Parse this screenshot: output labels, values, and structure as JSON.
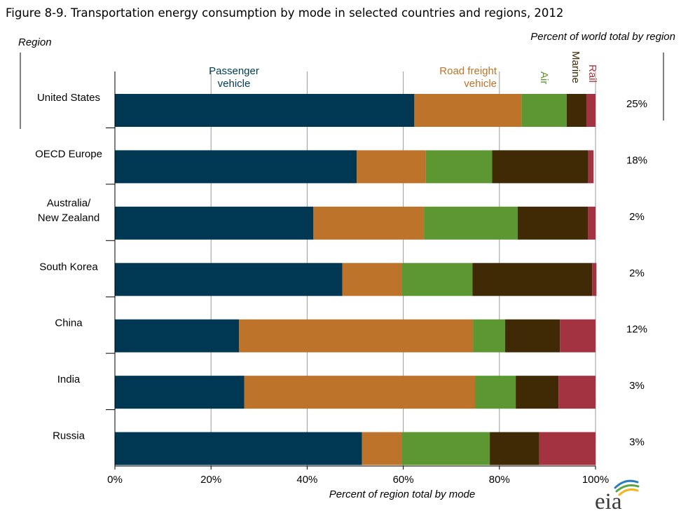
{
  "figure": {
    "title": "Figure 8-9. Transportation energy consumption by mode in selected countries and regions, 2012",
    "region_header": "Region",
    "share_header": "Percent of world total by region",
    "logo_text": "eia"
  },
  "chart_data": {
    "type": "bar",
    "orientation": "horizontal",
    "stacked": true,
    "title": "Figure 8-9. Transportation energy consumption by mode in selected countries and regions, 2012",
    "xlabel": "Percent of region total by mode",
    "ylabel": "Region",
    "xlim": [
      0,
      100
    ],
    "x_ticks": [
      "0%",
      "20%",
      "40%",
      "60%",
      "80%",
      "100%"
    ],
    "grid": "vertical",
    "categories": [
      [
        "United States"
      ],
      [
        "OECD Europe"
      ],
      [
        "Australia/",
        "New Zealand"
      ],
      [
        "South Korea"
      ],
      [
        "China"
      ],
      [
        "India"
      ],
      [
        "Russia"
      ]
    ],
    "series": [
      {
        "name": [
          "Passenger",
          "vehicle"
        ],
        "color": "#003853",
        "values": [
          62.3,
          50.3,
          41.3,
          47.3,
          25.8,
          26.9,
          51.4
        ]
      },
      {
        "name": [
          "Road freight",
          "vehicle"
        ],
        "color": "#bd732a",
        "values": [
          22.3,
          14.4,
          23.0,
          12.4,
          48.7,
          48.1,
          8.3
        ]
      },
      {
        "name": [
          "Air"
        ],
        "color": "#5d9732",
        "values": [
          9.4,
          13.8,
          19.5,
          14.7,
          6.7,
          8.4,
          18.3
        ]
      },
      {
        "name": [
          "Marine"
        ],
        "color": "#3f2a05",
        "values": [
          4.1,
          20.0,
          14.6,
          24.9,
          11.4,
          8.9,
          10.3
        ]
      },
      {
        "name": [
          "Rail"
        ],
        "color": "#a33340",
        "values": [
          1.9,
          1.1,
          1.6,
          0.9,
          7.4,
          7.7,
          11.7
        ]
      }
    ],
    "world_share_labels": [
      "25%",
      "18%",
      "2%",
      "2%",
      "12%",
      "3%",
      "3%"
    ]
  }
}
